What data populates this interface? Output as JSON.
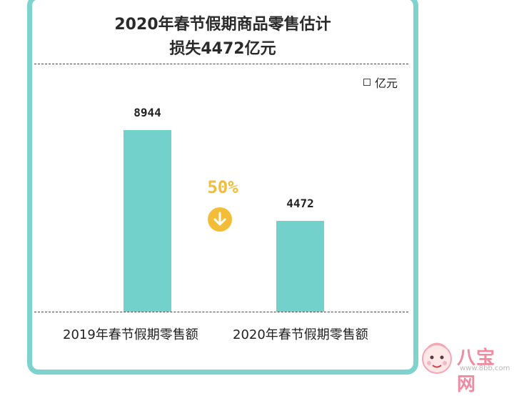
{
  "chart_data": {
    "type": "bar",
    "title_line1": "2020年春节假期商品零售估计",
    "title_line2": "损失4472亿元",
    "unit_label": "亿元",
    "categories": [
      "2019年春节假期零售额",
      "2020年春节假期零售额"
    ],
    "values": [
      8944,
      4472
    ],
    "value_labels": [
      "8944",
      "4472"
    ],
    "change_label": "50%",
    "change_direction": "down",
    "ylim": [
      0,
      10000
    ],
    "bar_color": "#72d1cb",
    "accent_color": "#f3bd38",
    "frame_color": "#7fd3cf"
  },
  "watermark": {
    "brand": "八宝网",
    "url": "www.8bb.com"
  }
}
